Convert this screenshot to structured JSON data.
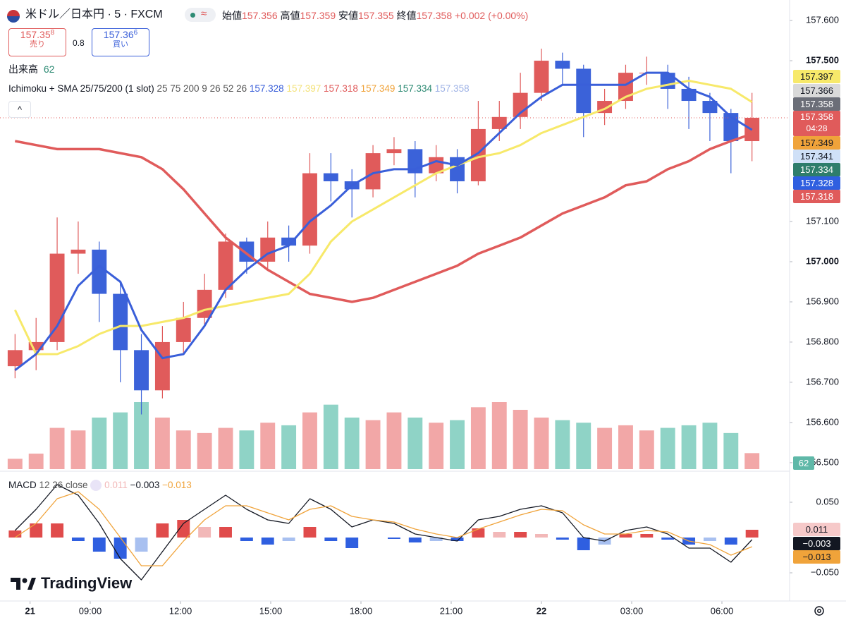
{
  "header": {
    "symbol": "米ドル／日本円 · 5 · FXCM",
    "approx": "≈",
    "ohlc": [
      {
        "label": "始値",
        "value": 157.356
      },
      {
        "label": "高値",
        "value": 157.359
      },
      {
        "label": "安値",
        "value": 157.355
      },
      {
        "label": "終値",
        "value": 157.358
      }
    ],
    "change": "+0.002 (+0.00%)",
    "sell": {
      "price": "157.35",
      "pip": "8",
      "label": "売り"
    },
    "spread": 0.8,
    "buy": {
      "price": "157.36",
      "pip": "6",
      "label": "買い"
    }
  },
  "indicator": {
    "name": "Ichimoku + SMA 25/75/200 (1 slot)",
    "params": "25 75 200 9 26 52 26"
  },
  "ichimoku": [
    {
      "value": 157.349,
      "color": "#f0a33a"
    },
    {
      "value": 157.334,
      "color": "#2e8b74"
    },
    {
      "value": 157.358,
      "color": "#9fb3e6"
    },
    {
      "value": 157.341,
      "color": "#cfe0f7"
    },
    {
      "value": 157.366,
      "color": "#d9d9d9"
    }
  ],
  "countdown": "04:28",
  "brand": "TradingView",
  "chart_data": [
    {
      "type": "candlestick",
      "up_color": "#e05b5b",
      "down_color": "#3b62d9",
      "x": [
        6.5,
        7.2,
        7.9,
        8.6,
        9.3,
        10.0,
        10.7,
        11.4,
        12.1,
        12.8,
        13.5,
        14.2,
        14.9,
        15.6,
        16.3,
        17.0,
        17.7,
        18.4,
        19.1,
        19.8,
        20.5,
        21.2,
        21.9,
        22.6,
        23.3,
        24.0,
        24.7,
        25.4,
        26.1,
        26.8,
        27.5,
        28.2,
        28.9,
        29.6,
        30.3,
        31.0
      ],
      "open": [
        156.74,
        156.78,
        156.8,
        157.02,
        157.03,
        156.92,
        156.78,
        156.68,
        156.8,
        156.86,
        156.93,
        157.05,
        157.0,
        157.06,
        157.04,
        157.22,
        157.2,
        157.18,
        157.27,
        157.28,
        157.22,
        157.26,
        157.2,
        157.33,
        157.36,
        157.42,
        157.5,
        157.48,
        157.37,
        157.4,
        157.47,
        157.47,
        157.43,
        157.4,
        157.37,
        157.3
      ],
      "high": [
        156.82,
        156.86,
        157.11,
        157.1,
        157.05,
        156.95,
        156.82,
        156.84,
        156.9,
        156.97,
        157.07,
        157.06,
        157.1,
        157.09,
        157.27,
        157.27,
        157.23,
        157.29,
        157.31,
        157.3,
        157.29,
        157.28,
        157.4,
        157.4,
        157.47,
        157.53,
        157.52,
        157.49,
        157.43,
        157.49,
        157.51,
        157.49,
        157.46,
        157.42,
        157.38,
        157.42
      ],
      "low": [
        156.71,
        156.73,
        156.78,
        156.97,
        156.85,
        156.7,
        156.62,
        156.66,
        156.77,
        156.84,
        156.91,
        156.97,
        156.98,
        157.0,
        157.02,
        157.15,
        157.11,
        157.16,
        157.24,
        157.16,
        157.2,
        157.17,
        157.19,
        157.3,
        157.33,
        157.4,
        157.44,
        157.31,
        157.34,
        157.38,
        157.44,
        157.38,
        157.33,
        157.3,
        157.22,
        157.25
      ],
      "close": [
        156.78,
        156.8,
        157.02,
        157.03,
        156.92,
        156.78,
        156.68,
        156.8,
        156.86,
        156.93,
        157.05,
        157.0,
        157.06,
        157.04,
        157.22,
        157.2,
        157.18,
        157.27,
        157.28,
        157.22,
        157.26,
        157.2,
        157.33,
        157.36,
        157.42,
        157.5,
        157.48,
        157.37,
        157.4,
        157.47,
        157.47,
        157.43,
        157.4,
        157.37,
        157.3,
        157.358
      ],
      "series": [
        {
          "color": "#3a5fd9",
          "width": 3,
          "values": [
            156.73,
            156.77,
            156.84,
            156.94,
            156.99,
            156.95,
            156.83,
            156.76,
            156.77,
            156.84,
            156.93,
            156.98,
            157.02,
            157.04,
            157.1,
            157.14,
            157.19,
            157.22,
            157.23,
            157.23,
            157.25,
            157.24,
            157.27,
            157.32,
            157.37,
            157.41,
            157.44,
            157.44,
            157.44,
            157.44,
            157.47,
            157.47,
            157.43,
            157.41,
            157.36,
            157.328
          ]
        },
        {
          "color": "#f7e96a",
          "width": 3,
          "values": [
            156.88,
            156.77,
            156.77,
            156.79,
            156.82,
            156.84,
            156.84,
            156.85,
            156.86,
            156.88,
            156.89,
            156.9,
            156.91,
            156.92,
            156.97,
            157.05,
            157.1,
            157.13,
            157.16,
            157.19,
            157.22,
            157.24,
            157.26,
            157.27,
            157.29,
            157.32,
            157.34,
            157.36,
            157.38,
            157.41,
            157.43,
            157.44,
            157.45,
            157.44,
            157.43,
            157.397
          ]
        },
        {
          "color": "#e05b5b",
          "width": 3.5,
          "values": [
            157.3,
            157.29,
            157.28,
            157.28,
            157.28,
            157.27,
            157.26,
            157.23,
            157.18,
            157.12,
            157.06,
            157.02,
            156.98,
            156.95,
            156.92,
            156.91,
            156.9,
            156.91,
            156.93,
            156.95,
            156.97,
            156.99,
            157.02,
            157.04,
            157.06,
            157.09,
            157.12,
            157.14,
            157.16,
            157.19,
            157.2,
            157.23,
            157.25,
            157.28,
            157.3,
            157.318
          ]
        }
      ],
      "volume": {
        "name": "出来高",
        "up_color": "#f2a7a7",
        "down_color": "#8fd3c6",
        "values": [
          40,
          60,
          160,
          150,
          200,
          220,
          260,
          200,
          150,
          140,
          160,
          150,
          180,
          170,
          220,
          250,
          200,
          190,
          220,
          200,
          180,
          190,
          240,
          260,
          230,
          200,
          190,
          180,
          160,
          170,
          150,
          160,
          170,
          180,
          140,
          62
        ]
      },
      "xlim": [
        6,
        32.25
      ],
      "xticks": [
        {
          "value": 7,
          "label": "21",
          "bold": true
        },
        {
          "value": 9,
          "label": "09:00"
        },
        {
          "value": 12,
          "label": "12:00"
        },
        {
          "value": 15,
          "label": "15:00"
        },
        {
          "value": 18,
          "label": "18:00"
        },
        {
          "value": 21,
          "label": "21:00"
        },
        {
          "value": 24,
          "label": "22",
          "bold": true
        },
        {
          "value": 27,
          "label": "03:00"
        },
        {
          "value": 30,
          "label": "06:00"
        }
      ],
      "ylim": [
        156.484,
        157.651
      ],
      "yticks": [
        {
          "value": 157.6,
          "label": "157.600"
        },
        {
          "value": 157.5,
          "label": "157.500",
          "bold": true
        },
        {
          "value": 157.1,
          "label": "157.100"
        },
        {
          "value": 157.0,
          "label": "157.000",
          "bold": true
        },
        {
          "value": 156.9,
          "label": "156.900"
        },
        {
          "value": 156.8,
          "label": "156.800"
        },
        {
          "value": 156.7,
          "label": "156.700"
        },
        {
          "value": 156.6,
          "label": "156.600"
        },
        {
          "value": 156.5,
          "label": "156.500"
        }
      ]
    },
    {
      "type": "line",
      "title": "MACD",
      "params": "12 26 close",
      "legend": [
        "0.011",
        "−0.003",
        "−0.013"
      ],
      "histogram": {
        "colors": [
          "#e04b4b",
          "#f2b8b8",
          "#2f5fe0",
          "#a8c0f0"
        ],
        "values": [
          0.01,
          0.02,
          0.02,
          -0.005,
          -0.02,
          -0.03,
          -0.02,
          0.02,
          0.025,
          0.015,
          0.015,
          -0.005,
          -0.01,
          -0.005,
          0.015,
          -0.005,
          -0.015,
          0,
          -0.002,
          -0.007,
          -0.005,
          -0.005,
          0.013,
          0.008,
          0.008,
          0.005,
          -0.003,
          -0.018,
          -0.01,
          0.005,
          0.005,
          -0.003,
          -0.01,
          -0.005,
          -0.01,
          0.011
        ]
      },
      "series": [
        {
          "color": "#131722",
          "values": [
            0.01,
            0.04,
            0.075,
            0.06,
            0.02,
            -0.03,
            -0.06,
            -0.02,
            0.02,
            0.04,
            0.06,
            0.04,
            0.025,
            0.02,
            0.055,
            0.04,
            0.015,
            0.025,
            0.02,
            0.005,
            0,
            -0.005,
            0.025,
            0.03,
            0.04,
            0.045,
            0.035,
            0,
            -0.005,
            0.01,
            0.015,
            0.005,
            -0.015,
            -0.015,
            -0.035,
            -0.003
          ]
        },
        {
          "color": "#f0a33a",
          "values": [
            0,
            0.02,
            0.055,
            0.065,
            0.04,
            0,
            -0.04,
            -0.04,
            -0.005,
            0.025,
            0.045,
            0.045,
            0.035,
            0.025,
            0.04,
            0.045,
            0.03,
            0.025,
            0.022,
            0.012,
            0.005,
            0,
            0.012,
            0.022,
            0.032,
            0.04,
            0.038,
            0.018,
            0.005,
            0.005,
            0.01,
            0.008,
            -0.005,
            -0.01,
            -0.025,
            -0.013
          ]
        }
      ],
      "ylim": [
        -0.088,
        0.09
      ],
      "yticks": [
        {
          "value": 0.05,
          "label": "0.050"
        },
        {
          "value": -0.05,
          "label": "−0.050"
        }
      ]
    }
  ]
}
